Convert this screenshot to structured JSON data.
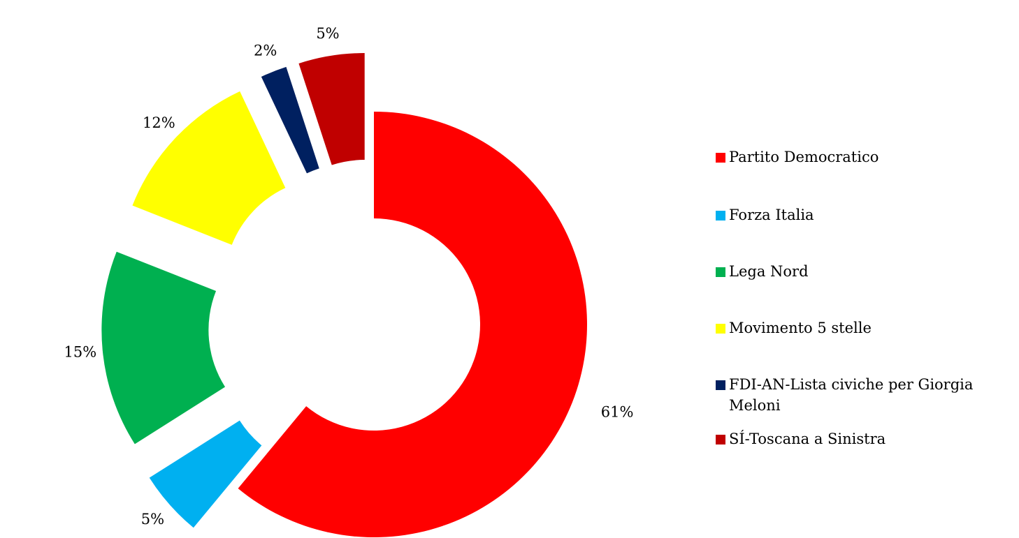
{
  "chart_data": {
    "type": "pie",
    "variant": "doughnut-exploded",
    "title": "",
    "slices": [
      {
        "label": "Partito Democratico",
        "value": 61,
        "data_label": "61%",
        "color": "#FF0000"
      },
      {
        "label": "Forza Italia",
        "value": 5,
        "data_label": "5%",
        "color": "#00B0F0"
      },
      {
        "label": "Lega Nord",
        "value": 15,
        "data_label": "15%",
        "color": "#00B050"
      },
      {
        "label": "Movimento 5 stelle",
        "value": 12,
        "data_label": "12%",
        "color": "#FFFF00"
      },
      {
        "label": "FDI-AN-Lista civiche per Giorgia Meloni",
        "value": 2,
        "data_label": "2%",
        "color": "#002060"
      },
      {
        "label": "SÍ-Toscana a Sinistra",
        "value": 5,
        "data_label": "5%",
        "color": "#C00000"
      }
    ],
    "legend_position": "right"
  }
}
